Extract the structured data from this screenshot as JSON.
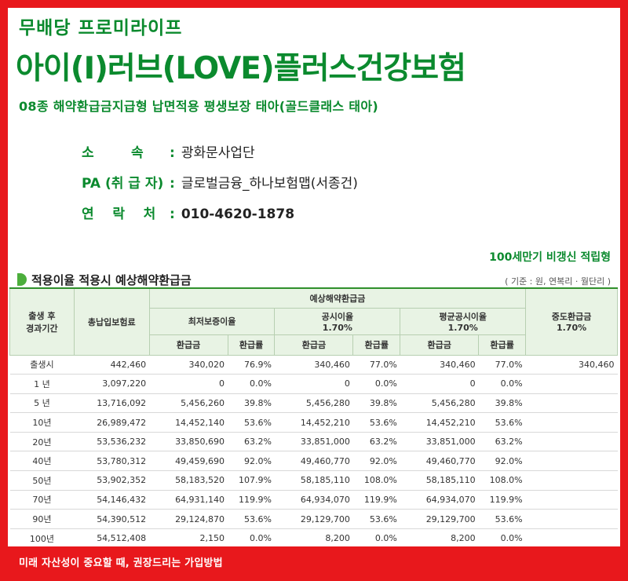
{
  "header": {
    "subtitle": "무배당 프로미라이프",
    "title": "아이(I)러브(LOVE)플러스건강보험",
    "description": "08종 해약환급금지급형 납면적용 평생보장  태아(골드클래스 태아)"
  },
  "info": [
    {
      "label": "소        속",
      "value": "광화문사업단",
      "bold": false
    },
    {
      "label": "PA (취 급 자)",
      "value": "글로벌금융_하나보험맵(서종건)",
      "bold": false
    },
    {
      "label": "연    락    처",
      "value": "010-4620-1878",
      "bold": true
    }
  ],
  "info_colon": ":",
  "plan_type": "100세만기 비갱신 적립형",
  "section_title": "적용이율 적용시 예상해약환급금",
  "unit_note": "( 기준 : 원, 연복리 · 월단리 )",
  "table": {
    "h_period": "출생 후\n경과기간",
    "h_premium": "총납입보험료",
    "h_expected": "예상해약환급금",
    "h_min": "최저보증이율",
    "h_public": "공시이율\n1.70%",
    "h_avg": "평균공시이율\n1.70%",
    "h_mid": "중도환급금\n1.70%",
    "h_amt": "환급금",
    "h_rate": "환급률",
    "rows": [
      {
        "period": "출생시",
        "premium": "442,460",
        "min_amt": "340,020",
        "min_rate": "76.9%",
        "pub_amt": "340,460",
        "pub_rate": "77.0%",
        "avg_amt": "340,460",
        "avg_rate": "77.0%",
        "mid": "340,460"
      },
      {
        "period": "1 년",
        "premium": "3,097,220",
        "min_amt": "0",
        "min_rate": "0.0%",
        "pub_amt": "0",
        "pub_rate": "0.0%",
        "avg_amt": "0",
        "avg_rate": "0.0%",
        "mid": ""
      },
      {
        "period": "5 년",
        "premium": "13,716,092",
        "min_amt": "5,456,260",
        "min_rate": "39.8%",
        "pub_amt": "5,456,280",
        "pub_rate": "39.8%",
        "avg_amt": "5,456,280",
        "avg_rate": "39.8%",
        "mid": ""
      },
      {
        "period": "10년",
        "premium": "26,989,472",
        "min_amt": "14,452,140",
        "min_rate": "53.6%",
        "pub_amt": "14,452,210",
        "pub_rate": "53.6%",
        "avg_amt": "14,452,210",
        "avg_rate": "53.6%",
        "mid": ""
      },
      {
        "period": "20년",
        "premium": "53,536,232",
        "min_amt": "33,850,690",
        "min_rate": "63.2%",
        "pub_amt": "33,851,000",
        "pub_rate": "63.2%",
        "avg_amt": "33,851,000",
        "avg_rate": "63.2%",
        "mid": ""
      },
      {
        "period": "40년",
        "premium": "53,780,312",
        "min_amt": "49,459,690",
        "min_rate": "92.0%",
        "pub_amt": "49,460,770",
        "pub_rate": "92.0%",
        "avg_amt": "49,460,770",
        "avg_rate": "92.0%",
        "mid": ""
      },
      {
        "period": "50년",
        "premium": "53,902,352",
        "min_amt": "58,183,520",
        "min_rate": "107.9%",
        "pub_amt": "58,185,110",
        "pub_rate": "108.0%",
        "avg_amt": "58,185,110",
        "avg_rate": "108.0%",
        "mid": ""
      },
      {
        "period": "70년",
        "premium": "54,146,432",
        "min_amt": "64,931,140",
        "min_rate": "119.9%",
        "pub_amt": "64,934,070",
        "pub_rate": "119.9%",
        "avg_amt": "64,934,070",
        "avg_rate": "119.9%",
        "mid": ""
      },
      {
        "period": "90년",
        "premium": "54,390,512",
        "min_amt": "29,124,870",
        "min_rate": "53.6%",
        "pub_amt": "29,129,700",
        "pub_rate": "53.6%",
        "avg_amt": "29,129,700",
        "avg_rate": "53.6%",
        "mid": ""
      },
      {
        "period": "100년",
        "premium": "54,512,408",
        "min_amt": "2,150",
        "min_rate": "0.0%",
        "pub_amt": "8,200",
        "pub_rate": "0.0%",
        "avg_amt": "8,200",
        "avg_rate": "0.0%",
        "mid": ""
      }
    ]
  },
  "footer": "미래 자산성이 중요할 때, 권장드리는 가입방법",
  "colors": {
    "brand_green": "#0b8a2e",
    "frame_red": "#e8181c",
    "header_bg": "#e8f3e4"
  }
}
